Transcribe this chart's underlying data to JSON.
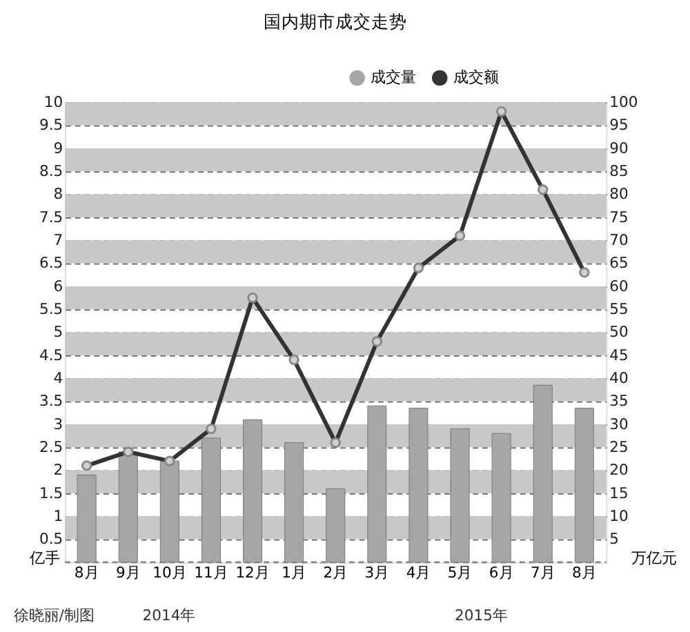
{
  "chart_data": {
    "type": "bar",
    "title": "国内期市成交走势",
    "categories": [
      "8月",
      "9月",
      "10月",
      "11月",
      "12月",
      "1月",
      "2月",
      "3月",
      "4月",
      "5月",
      "6月",
      "7月",
      "8月"
    ],
    "series": [
      {
        "name": "成交量",
        "color": "#a6a6a6",
        "values": [
          1.9,
          2.4,
          2.2,
          2.7,
          3.1,
          2.6,
          1.6,
          3.4,
          3.35,
          2.9,
          2.8,
          3.85,
          3.35
        ]
      },
      {
        "name": "成交额",
        "type": "line",
        "axis": "y2",
        "color": "#333333",
        "marker": "circle",
        "values": [
          21,
          24,
          22,
          29,
          57.5,
          44,
          26,
          48,
          64,
          71,
          98,
          81,
          63
        ]
      }
    ],
    "ylabel": "亿手",
    "y2label": "万亿元",
    "ylim": [
      0,
      10
    ],
    "yticks": [
      0.5,
      1,
      1.5,
      2,
      2.5,
      3,
      3.5,
      4,
      4.5,
      5,
      5.5,
      6,
      6.5,
      7,
      7.5,
      8,
      8.5,
      9,
      9.5,
      10
    ],
    "y2lim": [
      0,
      100
    ],
    "y2ticks": [
      5,
      10,
      15,
      20,
      25,
      30,
      35,
      40,
      45,
      50,
      55,
      60,
      65,
      70,
      75,
      80,
      85,
      90,
      95,
      100
    ],
    "bands": [
      {
        "axis": "y",
        "from": 0.5,
        "to": 1,
        "color": "#c8c8c8"
      },
      {
        "axis": "y",
        "from": 1.5,
        "to": 2,
        "color": "#c8c8c8"
      },
      {
        "axis": "y",
        "from": 2.5,
        "to": 3,
        "color": "#c8c8c8"
      },
      {
        "axis": "y",
        "from": 3.5,
        "to": 4,
        "color": "#c8c8c8"
      },
      {
        "axis": "y",
        "from": 4.5,
        "to": 5,
        "color": "#c8c8c8"
      },
      {
        "axis": "y",
        "from": 5.5,
        "to": 6,
        "color": "#c8c8c8"
      },
      {
        "axis": "y",
        "from": 6.5,
        "to": 7,
        "color": "#c8c8c8"
      },
      {
        "axis": "y",
        "from": 7.5,
        "to": 8,
        "color": "#c8c8c8"
      },
      {
        "axis": "y",
        "from": 8.5,
        "to": 9,
        "color": "#c8c8c8"
      },
      {
        "axis": "y",
        "from": 9.5,
        "to": 10,
        "color": "#c8c8c8"
      }
    ],
    "ref_lines": [
      {
        "axis": "y",
        "value": 0,
        "color": "#888888",
        "line_style": "dashed"
      }
    ],
    "grid": "y",
    "legend": "top right",
    "annotations": [
      "徐晓丽/制图",
      "2014年",
      "2015年"
    ]
  }
}
